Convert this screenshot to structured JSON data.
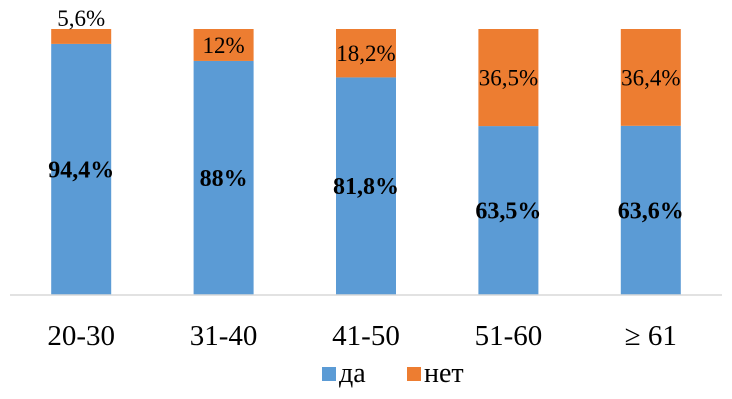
{
  "chart_data": {
    "type": "bar",
    "stacked": true,
    "percent_stacked": true,
    "categories": [
      "20-30",
      "31-40",
      "41-50",
      "51-60",
      "≥ 61"
    ],
    "series": [
      {
        "name": "да",
        "values": [
          94.4,
          88,
          81.8,
          63.5,
          63.6
        ],
        "labels": [
          "94,4%",
          "88%",
          "81,8%",
          "63,5%",
          "63,6%"
        ],
        "color": "#5B9BD5"
      },
      {
        "name": "нет",
        "values": [
          5.6,
          12,
          18.2,
          36.5,
          36.4
        ],
        "labels": [
          "5,6%",
          "12%",
          "18,2%",
          "36,5%",
          "36,4%"
        ],
        "color": "#ED7D31"
      }
    ],
    "ylim": [
      0,
      100
    ],
    "grid": false,
    "legend": "bottom-center",
    "axis_color": "#D9D9D9"
  }
}
